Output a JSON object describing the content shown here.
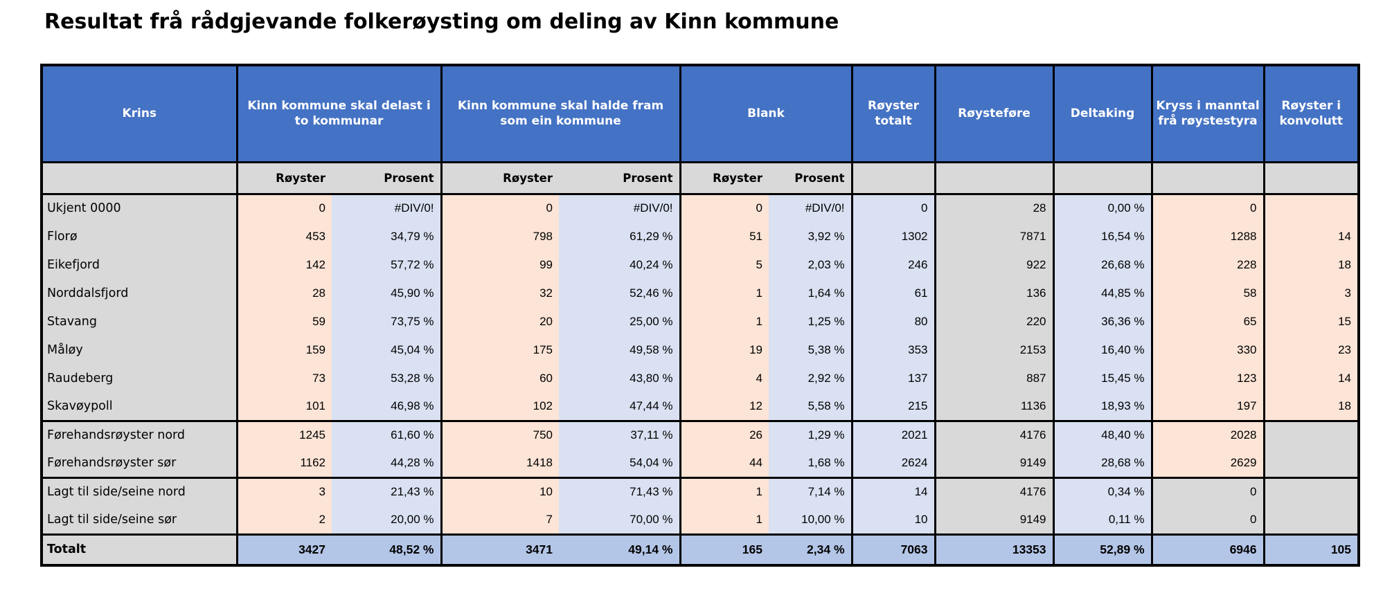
{
  "title": "Resultat frå rådgjevande folkerøysting om deling av Kinn kommune",
  "colors": {
    "header_bg": "#4472C4",
    "header_text": "#FFFFFF",
    "label_gray": "#D9D9D9",
    "royster_peach": "#FCE4D6",
    "prosent_light_blue": "#D9E1F2",
    "total_row_blue": "#B4C6E7",
    "border": "#000000"
  },
  "chart_data": {
    "type": "table",
    "title": "Resultat frå rådgjevande folkerøysting om deling av Kinn kommune",
    "header": {
      "krins": "Krins",
      "groups": [
        {
          "label": "Kinn kommune skal delast i to kommunar",
          "sub": [
            "Røyster",
            "Prosent"
          ]
        },
        {
          "label": "Kinn kommune skal halde fram som ein kommune",
          "sub": [
            "Røyster",
            "Prosent"
          ]
        },
        {
          "label": "Blank",
          "sub": [
            "Røyster",
            "Prosent"
          ]
        }
      ],
      "singles": [
        "Røyster totalt",
        "Røysteføre",
        "Deltaking",
        "Kryss i manntal frå røystestyra",
        "Røyster i konvolutt"
      ]
    },
    "sections": [
      {
        "name": "krinsar",
        "rows": [
          {
            "label": "Ukjent 0000",
            "values": [
              "0",
              "#DIV/0!",
              "0",
              "#DIV/0!",
              "0",
              "#DIV/0!",
              "0",
              "28",
              "0,00 %",
              "0",
              ""
            ]
          },
          {
            "label": "Florø",
            "values": [
              "453",
              "34,79 %",
              "798",
              "61,29 %",
              "51",
              "3,92 %",
              "1302",
              "7871",
              "16,54 %",
              "1288",
              "14"
            ]
          },
          {
            "label": "Eikefjord",
            "values": [
              "142",
              "57,72 %",
              "99",
              "40,24 %",
              "5",
              "2,03 %",
              "246",
              "922",
              "26,68 %",
              "228",
              "18"
            ]
          },
          {
            "label": "Norddalsfjord",
            "values": [
              "28",
              "45,90 %",
              "32",
              "52,46 %",
              "1",
              "1,64 %",
              "61",
              "136",
              "44,85 %",
              "58",
              "3"
            ]
          },
          {
            "label": "Stavang",
            "values": [
              "59",
              "73,75 %",
              "20",
              "25,00 %",
              "1",
              "1,25 %",
              "80",
              "220",
              "36,36 %",
              "65",
              "15"
            ]
          },
          {
            "label": "Måløy",
            "values": [
              "159",
              "45,04 %",
              "175",
              "49,58 %",
              "19",
              "5,38 %",
              "353",
              "2153",
              "16,40 %",
              "330",
              "23"
            ]
          },
          {
            "label": "Raudeberg",
            "values": [
              "73",
              "53,28 %",
              "60",
              "43,80 %",
              "4",
              "2,92 %",
              "137",
              "887",
              "15,45 %",
              "123",
              "14"
            ]
          },
          {
            "label": "Skavøypoll",
            "values": [
              "101",
              "46,98 %",
              "102",
              "47,44 %",
              "12",
              "5,58 %",
              "215",
              "1136",
              "18,93 %",
              "197",
              "18"
            ]
          }
        ]
      },
      {
        "name": "forehandsroyster",
        "konv_muted": true,
        "rows": [
          {
            "label": "Førehandsrøyster nord",
            "values": [
              "1245",
              "61,60 %",
              "750",
              "37,11 %",
              "26",
              "1,29 %",
              "2021",
              "4176",
              "48,40 %",
              "2028",
              ""
            ]
          },
          {
            "label": "Førehandsrøyster sør",
            "values": [
              "1162",
              "44,28 %",
              "1418",
              "54,04 %",
              "44",
              "1,68 %",
              "2624",
              "9149",
              "28,68 %",
              "2629",
              ""
            ]
          }
        ]
      },
      {
        "name": "lagt-til-side",
        "kryss_muted": true,
        "konv_muted": true,
        "rows": [
          {
            "label": "Lagt til side/seine nord",
            "values": [
              "3",
              "21,43 %",
              "10",
              "71,43 %",
              "1",
              "7,14 %",
              "14",
              "4176",
              "0,34 %",
              "0",
              ""
            ]
          },
          {
            "label": "Lagt til side/seine sør",
            "values": [
              "2",
              "20,00 %",
              "7",
              "70,00 %",
              "1",
              "10,00 %",
              "10",
              "9149",
              "0,11 %",
              "0",
              ""
            ]
          }
        ]
      }
    ],
    "total": {
      "label": "Totalt",
      "values": [
        "3427",
        "48,52 %",
        "3471",
        "49,14 %",
        "165",
        "2,34 %",
        "7063",
        "13353",
        "52,89 %",
        "6946",
        "105"
      ]
    }
  }
}
